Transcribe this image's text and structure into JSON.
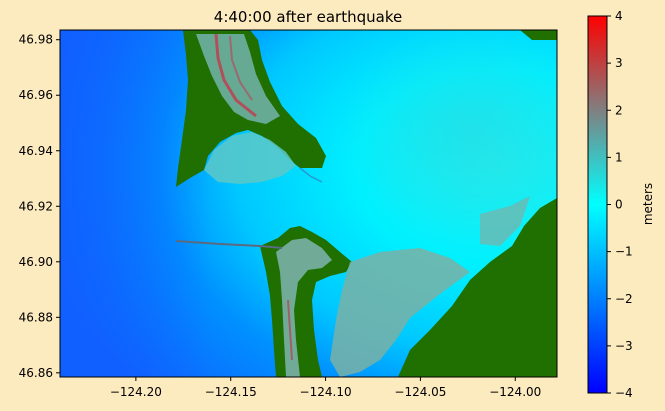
{
  "chart_data": {
    "type": "heatmap",
    "title": "4:40:00 after earthquake",
    "xlabel": "",
    "ylabel": "",
    "xlim": [
      -124.24,
      -123.978
    ],
    "ylim": [
      46.8585,
      46.9835
    ],
    "x_ticks": [
      -124.2,
      -124.15,
      -124.1,
      -124.05,
      -124.0
    ],
    "x_tick_labels": [
      "−124.20",
      "−124.15",
      "−124.10",
      "−124.05",
      "−124.00"
    ],
    "y_ticks": [
      46.86,
      46.88,
      46.9,
      46.92,
      46.94,
      46.96,
      46.98
    ],
    "y_tick_labels": [
      "46.86",
      "46.88",
      "46.90",
      "46.92",
      "46.94",
      "46.96",
      "46.98"
    ],
    "colorbar": {
      "label": "meters",
      "min": -4,
      "max": 4,
      "ticks": [
        4,
        3,
        2,
        1,
        0,
        -1,
        -2,
        -3,
        -4
      ],
      "tick_labels": [
        "4",
        "3",
        "2",
        "1",
        "0",
        "−1",
        "−2",
        "−3",
        "−4"
      ],
      "colormap_stops": [
        "#0000ff",
        "#00ffff",
        "#808080",
        "#ff0000"
      ]
    },
    "land_color": "#1f7000",
    "grid": false
  }
}
